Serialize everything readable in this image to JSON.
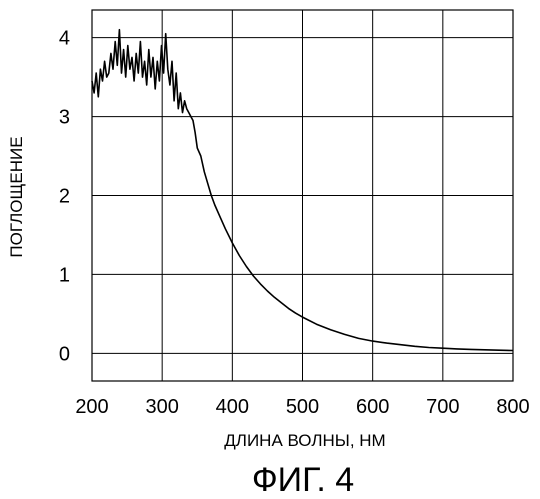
{
  "chart_data": {
    "type": "line",
    "title": "",
    "xlabel": "ДЛИНА ВОЛНЫ, НМ",
    "ylabel": "ПОГЛОЩЕНИЕ",
    "caption": "ФИГ. 4",
    "xlim": [
      200,
      800
    ],
    "ylim": [
      -0.35,
      4.35
    ],
    "x_ticks": [
      200,
      300,
      400,
      500,
      600,
      700,
      800
    ],
    "y_ticks": [
      0,
      1,
      2,
      3,
      4
    ],
    "grid": true,
    "series": [
      {
        "x": [
          200,
          203,
          206,
          209,
          212,
          215,
          218,
          221,
          224,
          227,
          230,
          233,
          236,
          239,
          242,
          245,
          248,
          251,
          254,
          257,
          260,
          263,
          266,
          269,
          272,
          275,
          278,
          281,
          284,
          287,
          290,
          293,
          296,
          299,
          302,
          305,
          308,
          311,
          314,
          317,
          320,
          323,
          326,
          329,
          332,
          335,
          338,
          341,
          344,
          347,
          350,
          355,
          360,
          365,
          370,
          375,
          380,
          390,
          400,
          410,
          420,
          430,
          440,
          450,
          460,
          470,
          480,
          490,
          500,
          520,
          540,
          560,
          580,
          600,
          620,
          640,
          660,
          680,
          700,
          720,
          740,
          760,
          780,
          800
        ],
        "y": [
          3.45,
          3.3,
          3.55,
          3.25,
          3.6,
          3.45,
          3.7,
          3.5,
          3.55,
          3.8,
          3.6,
          3.95,
          3.65,
          4.1,
          3.55,
          3.85,
          3.5,
          3.9,
          3.6,
          3.75,
          3.45,
          3.8,
          3.55,
          3.95,
          3.5,
          3.7,
          3.4,
          3.85,
          3.5,
          3.75,
          3.35,
          3.7,
          3.45,
          3.9,
          3.55,
          4.05,
          3.6,
          3.4,
          3.7,
          3.2,
          3.55,
          3.1,
          3.3,
          3.05,
          3.2,
          3.1,
          3.05,
          3.0,
          2.95,
          2.8,
          2.6,
          2.5,
          2.3,
          2.15,
          2.0,
          1.88,
          1.78,
          1.58,
          1.4,
          1.24,
          1.1,
          0.98,
          0.88,
          0.79,
          0.71,
          0.64,
          0.57,
          0.51,
          0.46,
          0.37,
          0.3,
          0.24,
          0.19,
          0.155,
          0.13,
          0.11,
          0.09,
          0.075,
          0.065,
          0.057,
          0.05,
          0.045,
          0.04,
          0.036
        ]
      }
    ]
  }
}
